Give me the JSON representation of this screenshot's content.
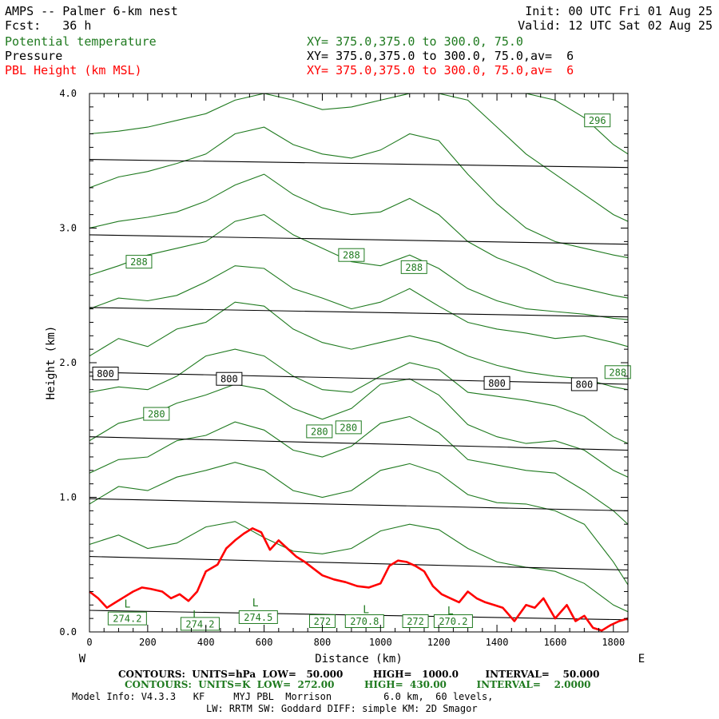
{
  "header": {
    "title": "AMPS -- Palmer 6-km nest",
    "fcst": "Fcst:   36 h",
    "init": "Init: 00 UTC Fri 01 Aug 25",
    "valid": "Valid: 12 UTC Sat 02 Aug 25"
  },
  "fields": [
    {
      "name": "Potential temperature",
      "xy": "XY= 375.0,375.0 to 300.0, 75.0",
      "color": "#1f7a1f"
    },
    {
      "name": "Pressure",
      "xy": "XY= 375.0,375.0 to 300.0, 75.0,av=  6",
      "color": "#000000"
    },
    {
      "name": "PBL Height (km MSL)",
      "xy": "XY= 375.0,375.0 to 300.0, 75.0,av=  6",
      "color": "#ff0000"
    }
  ],
  "footer": {
    "contours_hpa": "CONTOURS:  UNITS=hPa  LOW=   50.000         HIGH=   1000.0        INTERVAL=    50.000",
    "contours_k": "CONTOURS:  UNITS=K  LOW=  272.00         HIGH=  430.00         INTERVAL=    2.0000",
    "model_info": "Model Info: V4.3.3   KF     MYJ PBL  Morrison         6.0 km,  60 levels,",
    "model_info2": "LW: RRTM SW: Goddard DIFF: simple KM: 2D Smagor"
  },
  "chart_data": {
    "type": "line",
    "xlabel": "Distance (km)",
    "ylabel": "Height (km)",
    "xlim": [
      0,
      1850
    ],
    "ylim": [
      0,
      4.0
    ],
    "x_ticks": [
      0,
      200,
      400,
      600,
      800,
      1000,
      1200,
      1400,
      1600,
      1800
    ],
    "y_ticks": [
      0.0,
      1.0,
      2.0,
      3.0,
      4.0
    ],
    "y_tick_labels": [
      "0.0",
      "1.0",
      "2.0",
      "3.0",
      "4.0"
    ],
    "x_end_labels": {
      "left": "W",
      "right": "E"
    },
    "pressure_isobars": {
      "color": "#000000",
      "lines": [
        {
          "x": [
            0,
            1850
          ],
          "y": [
            0.16,
            0.09
          ]
        },
        {
          "x": [
            0,
            1850
          ],
          "y": [
            0.56,
            0.46
          ]
        },
        {
          "x": [
            0,
            1850
          ],
          "y": [
            0.99,
            0.9
          ]
        },
        {
          "x": [
            0,
            1850
          ],
          "y": [
            1.45,
            1.35
          ]
        },
        {
          "x": [
            0,
            1850
          ],
          "y": [
            1.93,
            1.84
          ]
        },
        {
          "x": [
            0,
            1850
          ],
          "y": [
            2.41,
            2.34
          ]
        },
        {
          "x": [
            0,
            1850
          ],
          "y": [
            2.95,
            2.88
          ]
        },
        {
          "x": [
            0,
            1850
          ],
          "y": [
            3.51,
            3.45
          ]
        }
      ]
    },
    "isobar_labels": [
      {
        "text": "800",
        "x": 55,
        "y": 1.92
      },
      {
        "text": "800",
        "x": 480,
        "y": 1.88
      },
      {
        "text": "800",
        "x": 1400,
        "y": 1.85
      },
      {
        "text": "800",
        "x": 1700,
        "y": 1.84
      }
    ],
    "theta_isentropes": {
      "color": "#1f7a1f",
      "x": [
        0,
        100,
        200,
        300,
        400,
        500,
        600,
        700,
        800,
        900,
        1000,
        1100,
        1200,
        1300,
        1400,
        1500,
        1600,
        1700,
        1800,
        1850
      ],
      "lines": [
        [
          0.65,
          0.72,
          0.62,
          0.66,
          0.78,
          0.82,
          0.7,
          0.6,
          0.58,
          0.62,
          0.75,
          0.8,
          0.76,
          0.62,
          0.52,
          0.48,
          0.45,
          0.36,
          0.2,
          0.15
        ],
        [
          0.95,
          1.08,
          1.05,
          1.15,
          1.2,
          1.26,
          1.2,
          1.05,
          1.0,
          1.05,
          1.2,
          1.25,
          1.18,
          1.02,
          0.96,
          0.95,
          0.9,
          0.8,
          0.52,
          0.35
        ],
        [
          1.18,
          1.28,
          1.3,
          1.42,
          1.46,
          1.56,
          1.5,
          1.35,
          1.3,
          1.38,
          1.55,
          1.6,
          1.48,
          1.28,
          1.24,
          1.2,
          1.18,
          1.05,
          0.9,
          0.8
        ],
        [
          1.42,
          1.55,
          1.6,
          1.7,
          1.76,
          1.84,
          1.8,
          1.66,
          1.58,
          1.66,
          1.84,
          1.88,
          1.76,
          1.54,
          1.45,
          1.4,
          1.42,
          1.35,
          1.2,
          1.15
        ],
        [
          1.78,
          1.82,
          1.8,
          1.9,
          2.05,
          2.1,
          2.05,
          1.9,
          1.8,
          1.78,
          1.9,
          2.0,
          1.95,
          1.78,
          1.75,
          1.72,
          1.68,
          1.6,
          1.45,
          1.4
        ],
        [
          2.05,
          2.18,
          2.12,
          2.25,
          2.3,
          2.45,
          2.42,
          2.25,
          2.15,
          2.1,
          2.15,
          2.2,
          2.15,
          2.05,
          1.98,
          1.93,
          1.9,
          1.88,
          1.82,
          1.8
        ],
        [
          2.4,
          2.48,
          2.46,
          2.5,
          2.6,
          2.72,
          2.7,
          2.55,
          2.48,
          2.4,
          2.45,
          2.55,
          2.42,
          2.3,
          2.25,
          2.22,
          2.18,
          2.2,
          2.15,
          2.12
        ],
        [
          2.65,
          2.72,
          2.8,
          2.85,
          2.9,
          3.05,
          3.1,
          2.95,
          2.85,
          2.75,
          2.72,
          2.8,
          2.7,
          2.55,
          2.46,
          2.4,
          2.38,
          2.36,
          2.33,
          2.32
        ],
        [
          3.0,
          3.05,
          3.08,
          3.12,
          3.2,
          3.32,
          3.4,
          3.25,
          3.15,
          3.1,
          3.12,
          3.22,
          3.1,
          2.9,
          2.78,
          2.7,
          2.6,
          2.55,
          2.5,
          2.48
        ],
        [
          3.3,
          3.38,
          3.42,
          3.48,
          3.55,
          3.7,
          3.75,
          3.62,
          3.55,
          3.52,
          3.58,
          3.7,
          3.65,
          3.4,
          3.18,
          3.0,
          2.9,
          2.85,
          2.8,
          2.78
        ],
        [
          3.7,
          3.72,
          3.75,
          3.8,
          3.85,
          3.95,
          4.0,
          3.95,
          3.88,
          3.9,
          3.95,
          4.0,
          4.0,
          3.95,
          3.75,
          3.55,
          3.4,
          3.25,
          3.1,
          3.05
        ],
        [
          4.0,
          4.0,
          4.0,
          4.0,
          4.0,
          4.0,
          4.0,
          4.0,
          4.0,
          4.0,
          4.0,
          4.0,
          4.0,
          4.0,
          4.0,
          4.0,
          3.95,
          3.82,
          3.62,
          3.55
        ]
      ]
    },
    "theta_labels": [
      {
        "text": "274.2",
        "x": 130,
        "y": 0.1
      },
      {
        "text": "274.2",
        "x": 380,
        "y": 0.06
      },
      {
        "text": "274.5",
        "x": 580,
        "y": 0.11
      },
      {
        "text": "272",
        "x": 800,
        "y": 0.08
      },
      {
        "text": "270.8",
        "x": 945,
        "y": 0.08
      },
      {
        "text": "272",
        "x": 1120,
        "y": 0.08
      },
      {
        "text": "270.2",
        "x": 1250,
        "y": 0.08
      },
      {
        "text": "280",
        "x": 230,
        "y": 1.62
      },
      {
        "text": "280",
        "x": 790,
        "y": 1.49
      },
      {
        "text": "280",
        "x": 890,
        "y": 1.52
      },
      {
        "text": "288",
        "x": 170,
        "y": 2.75
      },
      {
        "text": "288",
        "x": 900,
        "y": 2.8
      },
      {
        "text": "288",
        "x": 1115,
        "y": 2.71
      },
      {
        "text": "288",
        "x": 1815,
        "y": 1.93
      },
      {
        "text": "296",
        "x": 1745,
        "y": 3.8
      }
    ],
    "low_markers": [
      {
        "text": "L",
        "x": 130,
        "y": 0.18
      },
      {
        "text": "L",
        "x": 365,
        "y": 0.1
      },
      {
        "text": "L",
        "x": 570,
        "y": 0.19
      },
      {
        "text": "L",
        "x": 950,
        "y": 0.14
      },
      {
        "text": "L",
        "x": 1240,
        "y": 0.13
      }
    ],
    "pbl_height": {
      "color": "#ff0000",
      "x": [
        0,
        30,
        60,
        90,
        120,
        150,
        180,
        210,
        250,
        280,
        310,
        340,
        370,
        400,
        440,
        470,
        500,
        530,
        560,
        590,
        620,
        650,
        680,
        710,
        740,
        770,
        800,
        840,
        880,
        920,
        960,
        1000,
        1030,
        1060,
        1090,
        1120,
        1150,
        1180,
        1210,
        1240,
        1270,
        1300,
        1330,
        1360,
        1390,
        1420,
        1460,
        1500,
        1530,
        1560,
        1600,
        1640,
        1670,
        1700,
        1730,
        1760,
        1790,
        1820,
        1850
      ],
      "y": [
        0.3,
        0.25,
        0.18,
        0.22,
        0.26,
        0.3,
        0.33,
        0.32,
        0.3,
        0.25,
        0.28,
        0.23,
        0.3,
        0.45,
        0.5,
        0.62,
        0.68,
        0.73,
        0.77,
        0.74,
        0.61,
        0.68,
        0.62,
        0.56,
        0.52,
        0.47,
        0.42,
        0.39,
        0.37,
        0.34,
        0.33,
        0.36,
        0.49,
        0.53,
        0.52,
        0.49,
        0.45,
        0.34,
        0.28,
        0.25,
        0.22,
        0.3,
        0.25,
        0.22,
        0.2,
        0.18,
        0.08,
        0.2,
        0.18,
        0.25,
        0.1,
        0.2,
        0.08,
        0.12,
        0.03,
        0.01,
        0.05,
        0.08,
        0.1
      ]
    }
  }
}
